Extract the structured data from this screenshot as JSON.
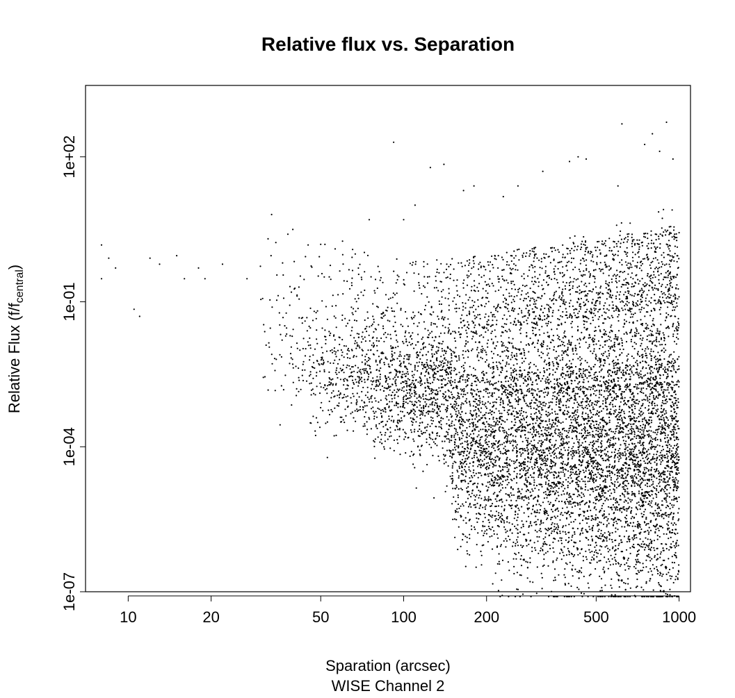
{
  "chart_data": {
    "type": "scatter",
    "title": "Relative flux vs. Separation",
    "xlabel": "Sparation (arcsec)",
    "xlabel_line2": "WISE Channel 2",
    "ylabel": {
      "main": "Relative Flux (f/f",
      "subscript": "central",
      "close": ")"
    },
    "x_scale": "log",
    "y_scale": "log",
    "xlim": [
      7,
      1100
    ],
    "ylim": [
      1e-07,
      3000
    ],
    "x_ticks": [
      10,
      20,
      50,
      100,
      200,
      500,
      1000
    ],
    "x_tick_labels": [
      "10",
      "20",
      "50",
      "100",
      "200",
      "500",
      "1000"
    ],
    "y_ticks": [
      1e-07,
      0.0001,
      0.1,
      100
    ],
    "y_tick_labels": [
      "1e-07",
      "1e-04",
      "1e-01",
      "1e+02"
    ],
    "grid": false,
    "legend": "none",
    "point_color": "#000000",
    "density_profile": [
      [
        8,
        0.4,
        1.0,
        3
      ],
      [
        10,
        0.1,
        1.0,
        6
      ],
      [
        14,
        0.05,
        1.0,
        8
      ],
      [
        20,
        0.01,
        0.5,
        15
      ],
      [
        25,
        0.004,
        0.4,
        40
      ],
      [
        30,
        0.002,
        0.3,
        90
      ],
      [
        40,
        0.001,
        0.1,
        250
      ],
      [
        50,
        0.0005,
        0.05,
        500
      ],
      [
        70,
        0.0002,
        0.03,
        900
      ],
      [
        100,
        0.00015,
        0.02,
        1300
      ],
      [
        140,
        0.0001,
        0.02,
        1700
      ],
      [
        160,
        3e-06,
        0.02,
        2400
      ],
      [
        250,
        1e-06,
        0.03,
        3000
      ],
      [
        500,
        5e-07,
        0.05,
        3800
      ],
      [
        1000,
        2e-07,
        0.1,
        4500
      ]
    ],
    "sparse_points": [
      [
        8,
        1.5
      ],
      [
        8,
        0.3
      ],
      [
        8.5,
        0.8
      ],
      [
        9,
        0.5
      ],
      [
        10.5,
        0.07
      ],
      [
        11,
        0.05
      ],
      [
        12,
        0.8
      ],
      [
        13,
        0.6
      ],
      [
        15,
        0.9
      ],
      [
        16,
        0.3
      ],
      [
        18,
        0.5
      ],
      [
        19,
        0.3
      ],
      [
        22,
        0.6
      ],
      [
        27,
        0.3
      ],
      [
        33,
        0.9
      ],
      [
        38,
        2.5
      ],
      [
        45,
        1.5
      ],
      [
        60,
        1.8
      ],
      [
        75,
        5
      ],
      [
        92,
        200
      ],
      [
        100,
        5
      ],
      [
        110,
        10
      ],
      [
        125,
        60
      ],
      [
        140,
        70
      ],
      [
        165,
        20
      ],
      [
        180,
        25
      ],
      [
        230,
        15
      ],
      [
        260,
        25
      ],
      [
        320,
        50
      ],
      [
        400,
        80
      ],
      [
        430,
        100
      ],
      [
        460,
        90
      ],
      [
        600,
        25
      ],
      [
        620,
        480
      ],
      [
        750,
        180
      ],
      [
        800,
        300
      ],
      [
        850,
        130
      ],
      [
        900,
        520
      ],
      [
        950,
        90
      ]
    ]
  }
}
